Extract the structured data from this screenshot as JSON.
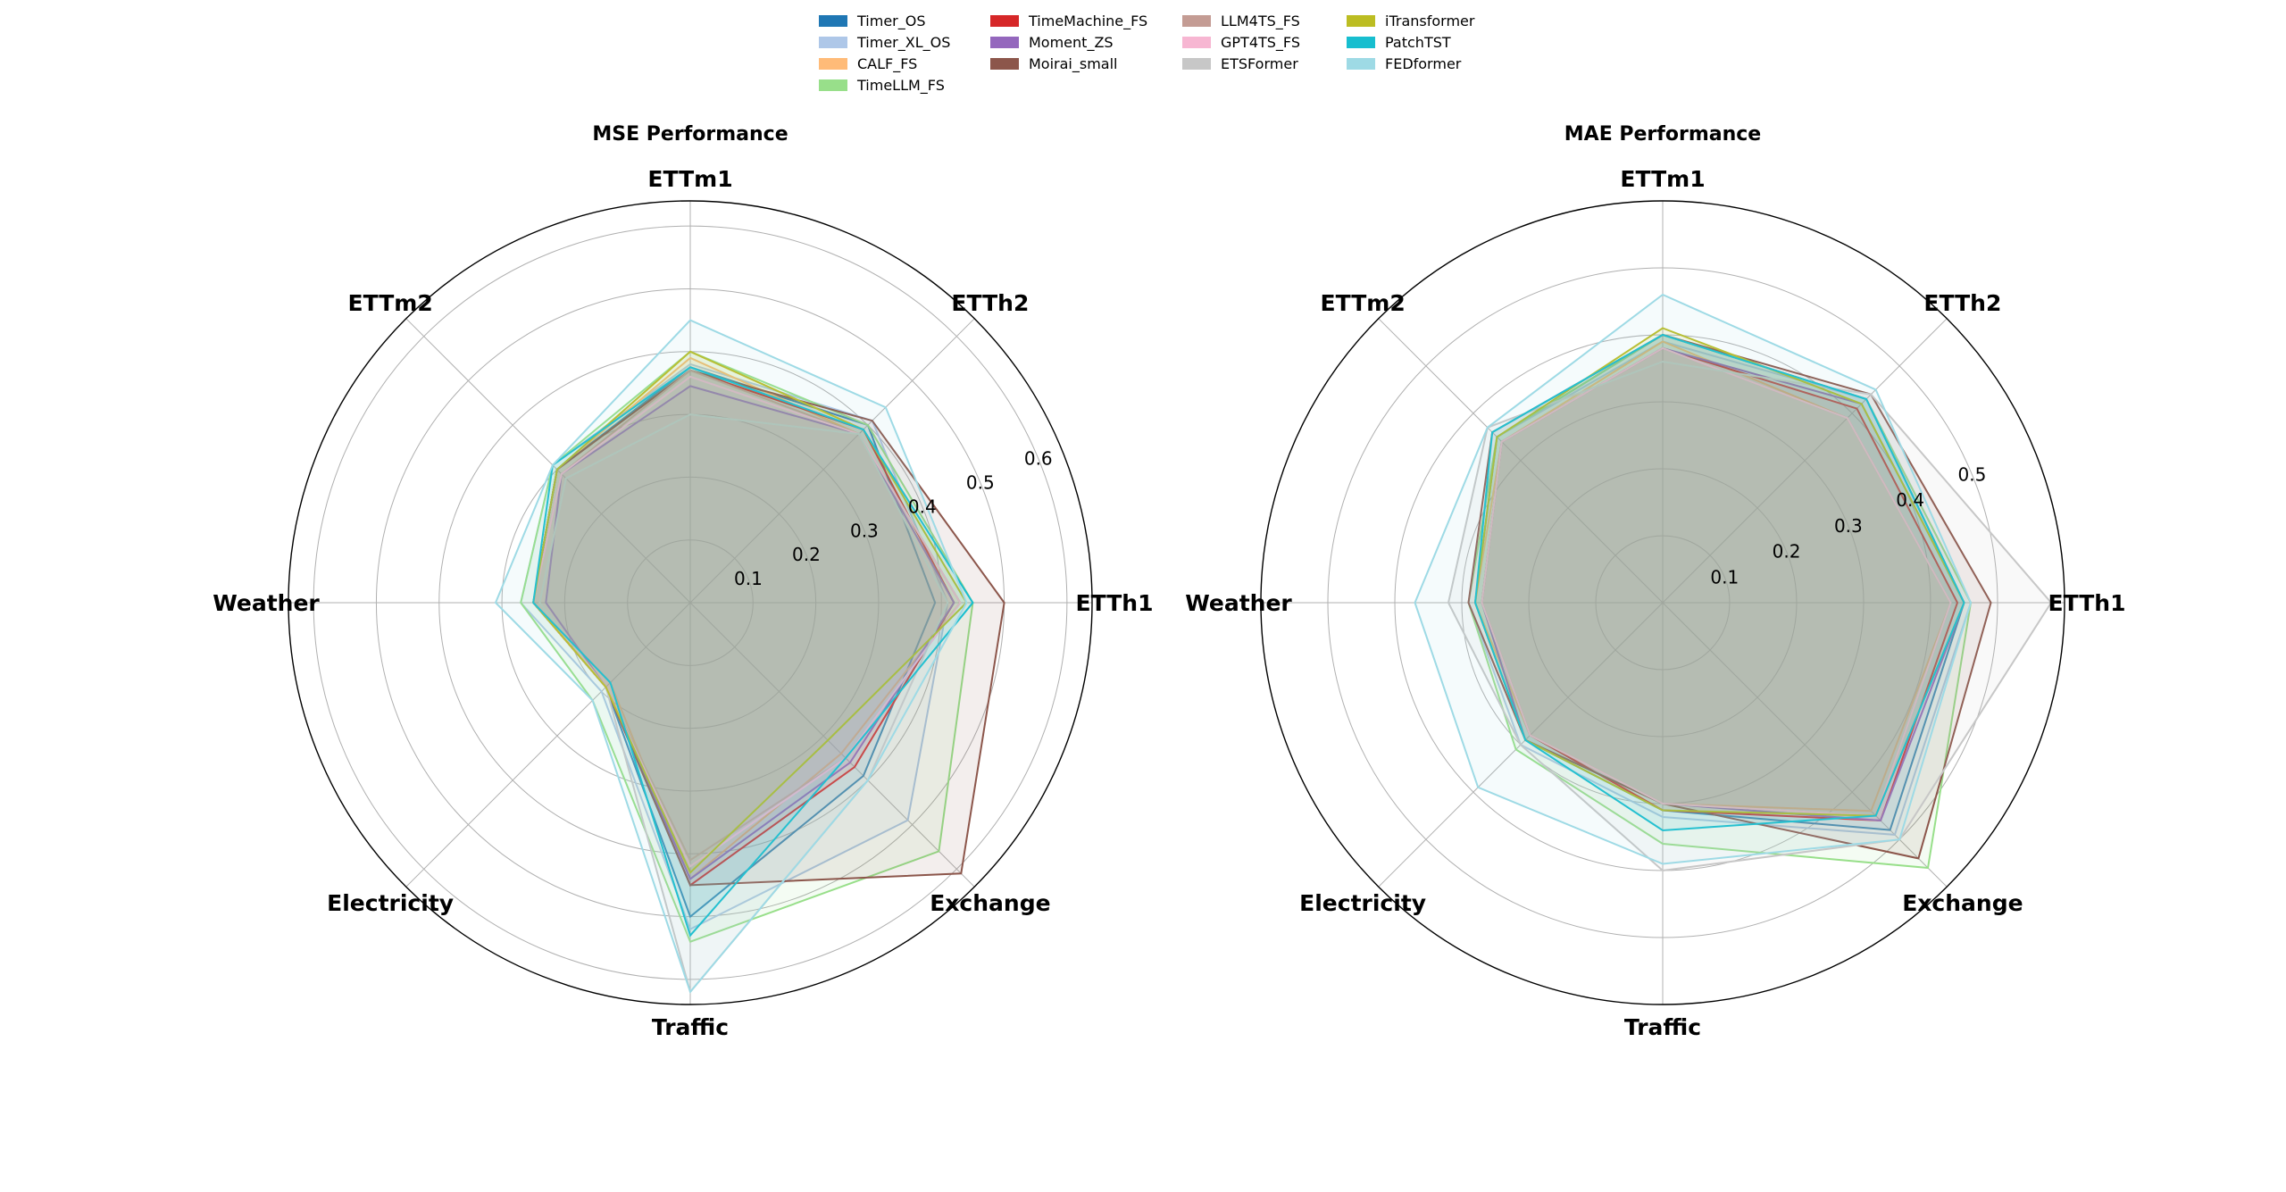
{
  "chart_data": [
    {
      "type": "radar",
      "title": "MSE Performance",
      "axes": [
        "ETTh1",
        "ETTh2",
        "ETTm1",
        "ETTm2",
        "Weather",
        "Electricity",
        "Traffic",
        "Exchange"
      ],
      "rmax": 0.64,
      "ticks": [
        0.1,
        0.2,
        0.3,
        0.4,
        0.5,
        0.6
      ],
      "tick_labels": [
        "0.1",
        "0.2",
        "0.3",
        "0.4",
        "0.5",
        "0.6"
      ],
      "series": [
        {
          "name": "Timer_OS",
          "color": "#1f77b4",
          "values": [
            0.39,
            0.4,
            0.375,
            0.3,
            0.25,
            0.19,
            0.5,
            0.39
          ]
        },
        {
          "name": "Timer_XL_OS",
          "color": "#aec7e8",
          "values": [
            0.41,
            0.41,
            0.38,
            0.31,
            0.27,
            0.2,
            0.52,
            0.49
          ]
        },
        {
          "name": "CALF_FS",
          "color": "#ffbb78",
          "values": [
            0.43,
            0.38,
            0.39,
            0.3,
            0.25,
            0.18,
            0.44,
            0.34
          ]
        },
        {
          "name": "TimeLLM_FS",
          "color": "#98df8a",
          "values": [
            0.45,
            0.4,
            0.4,
            0.31,
            0.27,
            0.22,
            0.54,
            0.56
          ]
        },
        {
          "name": "TimeMachine_FS",
          "color": "#d62728",
          "values": [
            0.42,
            0.39,
            0.37,
            0.3,
            0.25,
            0.19,
            0.45,
            0.37
          ]
        },
        {
          "name": "Moment_ZS",
          "color": "#9467bd",
          "values": [
            0.42,
            0.38,
            0.345,
            0.29,
            0.23,
            0.19,
            0.44,
            0.36
          ]
        },
        {
          "name": "Moirai_small",
          "color": "#8c564b",
          "values": [
            0.5,
            0.41,
            0.37,
            0.3,
            0.25,
            0.19,
            0.45,
            0.61
          ]
        },
        {
          "name": "LLM4TS_FS",
          "color": "#c49c94",
          "values": [
            0.43,
            0.38,
            0.37,
            0.29,
            0.25,
            0.19,
            0.41,
            0.35
          ]
        },
        {
          "name": "GPT4TS_FS",
          "color": "#f7b6d2",
          "values": [
            0.43,
            0.38,
            0.36,
            0.29,
            0.25,
            0.19,
            0.42,
            0.35
          ]
        },
        {
          "name": "ETSFormer",
          "color": "#c7c7c7",
          "values": [
            0.41,
            0.38,
            0.3,
            0.28,
            0.24,
            0.19,
            0.62,
            0.4
          ]
        },
        {
          "name": "iTransformer",
          "color": "#bcbd22",
          "values": [
            0.44,
            0.39,
            0.4,
            0.3,
            0.25,
            0.19,
            0.43,
            0.31
          ]
        },
        {
          "name": "PatchTST",
          "color": "#17becf",
          "values": [
            0.45,
            0.39,
            0.375,
            0.31,
            0.25,
            0.18,
            0.53,
            0.35
          ]
        },
        {
          "name": "FEDformer",
          "color": "#9edae5",
          "values": [
            0.44,
            0.44,
            0.45,
            0.31,
            0.31,
            0.22,
            0.62,
            0.4
          ]
        }
      ]
    },
    {
      "type": "radar",
      "title": "MAE Performance",
      "axes": [
        "ETTh1",
        "ETTh2",
        "ETTm1",
        "ETTm2",
        "Weather",
        "Electricity",
        "Traffic",
        "Exchange"
      ],
      "rmax": 0.6,
      "ticks": [
        0.1,
        0.2,
        0.3,
        0.4,
        0.5
      ],
      "tick_labels": [
        "0.1",
        "0.2",
        "0.3",
        "0.4",
        "0.5"
      ],
      "series": [
        {
          "name": "Timer_OS",
          "color": "#1f77b4",
          "values": [
            0.45,
            0.43,
            0.4,
            0.35,
            0.28,
            0.29,
            0.31,
            0.48
          ]
        },
        {
          "name": "Timer_XL_OS",
          "color": "#aec7e8",
          "values": [
            0.46,
            0.43,
            0.39,
            0.35,
            0.29,
            0.3,
            0.32,
            0.49
          ]
        },
        {
          "name": "CALF_FS",
          "color": "#ffbb78",
          "values": [
            0.43,
            0.39,
            0.39,
            0.34,
            0.28,
            0.28,
            0.3,
            0.44
          ]
        },
        {
          "name": "TimeLLM_FS",
          "color": "#98df8a",
          "values": [
            0.46,
            0.43,
            0.4,
            0.35,
            0.29,
            0.31,
            0.36,
            0.56
          ]
        },
        {
          "name": "TimeMachine_FS",
          "color": "#d62728",
          "values": [
            0.44,
            0.41,
            0.38,
            0.34,
            0.27,
            0.28,
            0.31,
            0.46
          ]
        },
        {
          "name": "Moment_ZS",
          "color": "#9467bd",
          "values": [
            0.45,
            0.42,
            0.38,
            0.34,
            0.27,
            0.29,
            0.3,
            0.46
          ]
        },
        {
          "name": "Moirai_small",
          "color": "#8c564b",
          "values": [
            0.49,
            0.44,
            0.4,
            0.36,
            0.29,
            0.29,
            0.3,
            0.54
          ]
        },
        {
          "name": "LLM4TS_FS",
          "color": "#c49c94",
          "values": [
            0.43,
            0.39,
            0.38,
            0.34,
            0.27,
            0.28,
            0.3,
            0.45
          ]
        },
        {
          "name": "GPT4TS_FS",
          "color": "#f7b6d2",
          "values": [
            0.43,
            0.39,
            0.38,
            0.34,
            0.27,
            0.28,
            0.3,
            0.45
          ]
        },
        {
          "name": "ETSFormer",
          "color": "#c7c7c7",
          "values": [
            0.58,
            0.44,
            0.36,
            0.37,
            0.32,
            0.3,
            0.4,
            0.5
          ]
        },
        {
          "name": "iTransformer",
          "color": "#bcbd22",
          "values": [
            0.45,
            0.42,
            0.41,
            0.35,
            0.28,
            0.29,
            0.31,
            0.45
          ]
        },
        {
          "name": "PatchTST",
          "color": "#17becf",
          "values": [
            0.45,
            0.43,
            0.4,
            0.36,
            0.28,
            0.29,
            0.34,
            0.45
          ]
        },
        {
          "name": "FEDformer",
          "color": "#9edae5",
          "values": [
            0.46,
            0.45,
            0.46,
            0.37,
            0.37,
            0.39,
            0.39,
            0.5
          ]
        }
      ]
    }
  ]
}
